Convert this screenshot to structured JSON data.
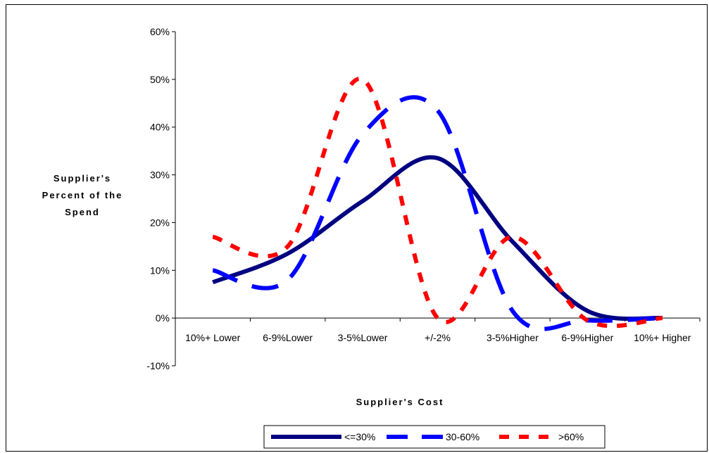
{
  "chart_data": {
    "type": "line",
    "title": "",
    "xlabel": "Supplier's Cost",
    "ylabel_lines": [
      "Supplier's",
      "Percent of the",
      "Spend"
    ],
    "categories": [
      "10%+ Lower",
      "6-9%Lower",
      "3-5%Lower",
      "+/-2%",
      "3-5%Higher",
      "6-9%Higher",
      "10%+ Higher"
    ],
    "ylim": [
      -0.1,
      0.6
    ],
    "yticks": [
      -0.1,
      0.0,
      0.1,
      0.2,
      0.3,
      0.4,
      0.5,
      0.6
    ],
    "ytick_labels": [
      "-10%",
      "0%",
      "10%",
      "20%",
      "30%",
      "40%",
      "50%",
      "60%"
    ],
    "grid": false,
    "legend_position": "bottom",
    "series": [
      {
        "name": "<=30%",
        "color": "#000080",
        "style": "solid",
        "values": [
          0.075,
          0.135,
          0.245,
          0.335,
          0.16,
          0.015,
          0.0
        ]
      },
      {
        "name": "30-60%",
        "color": "#0000ff",
        "style": "dashed",
        "values": [
          0.1,
          0.08,
          0.385,
          0.435,
          0.015,
          -0.005,
          0.0
        ]
      },
      {
        "name": ">60%",
        "color": "#ff0000",
        "style": "dashed",
        "values": [
          0.17,
          0.15,
          0.5,
          0.0,
          0.17,
          -0.005,
          0.0
        ]
      }
    ]
  }
}
